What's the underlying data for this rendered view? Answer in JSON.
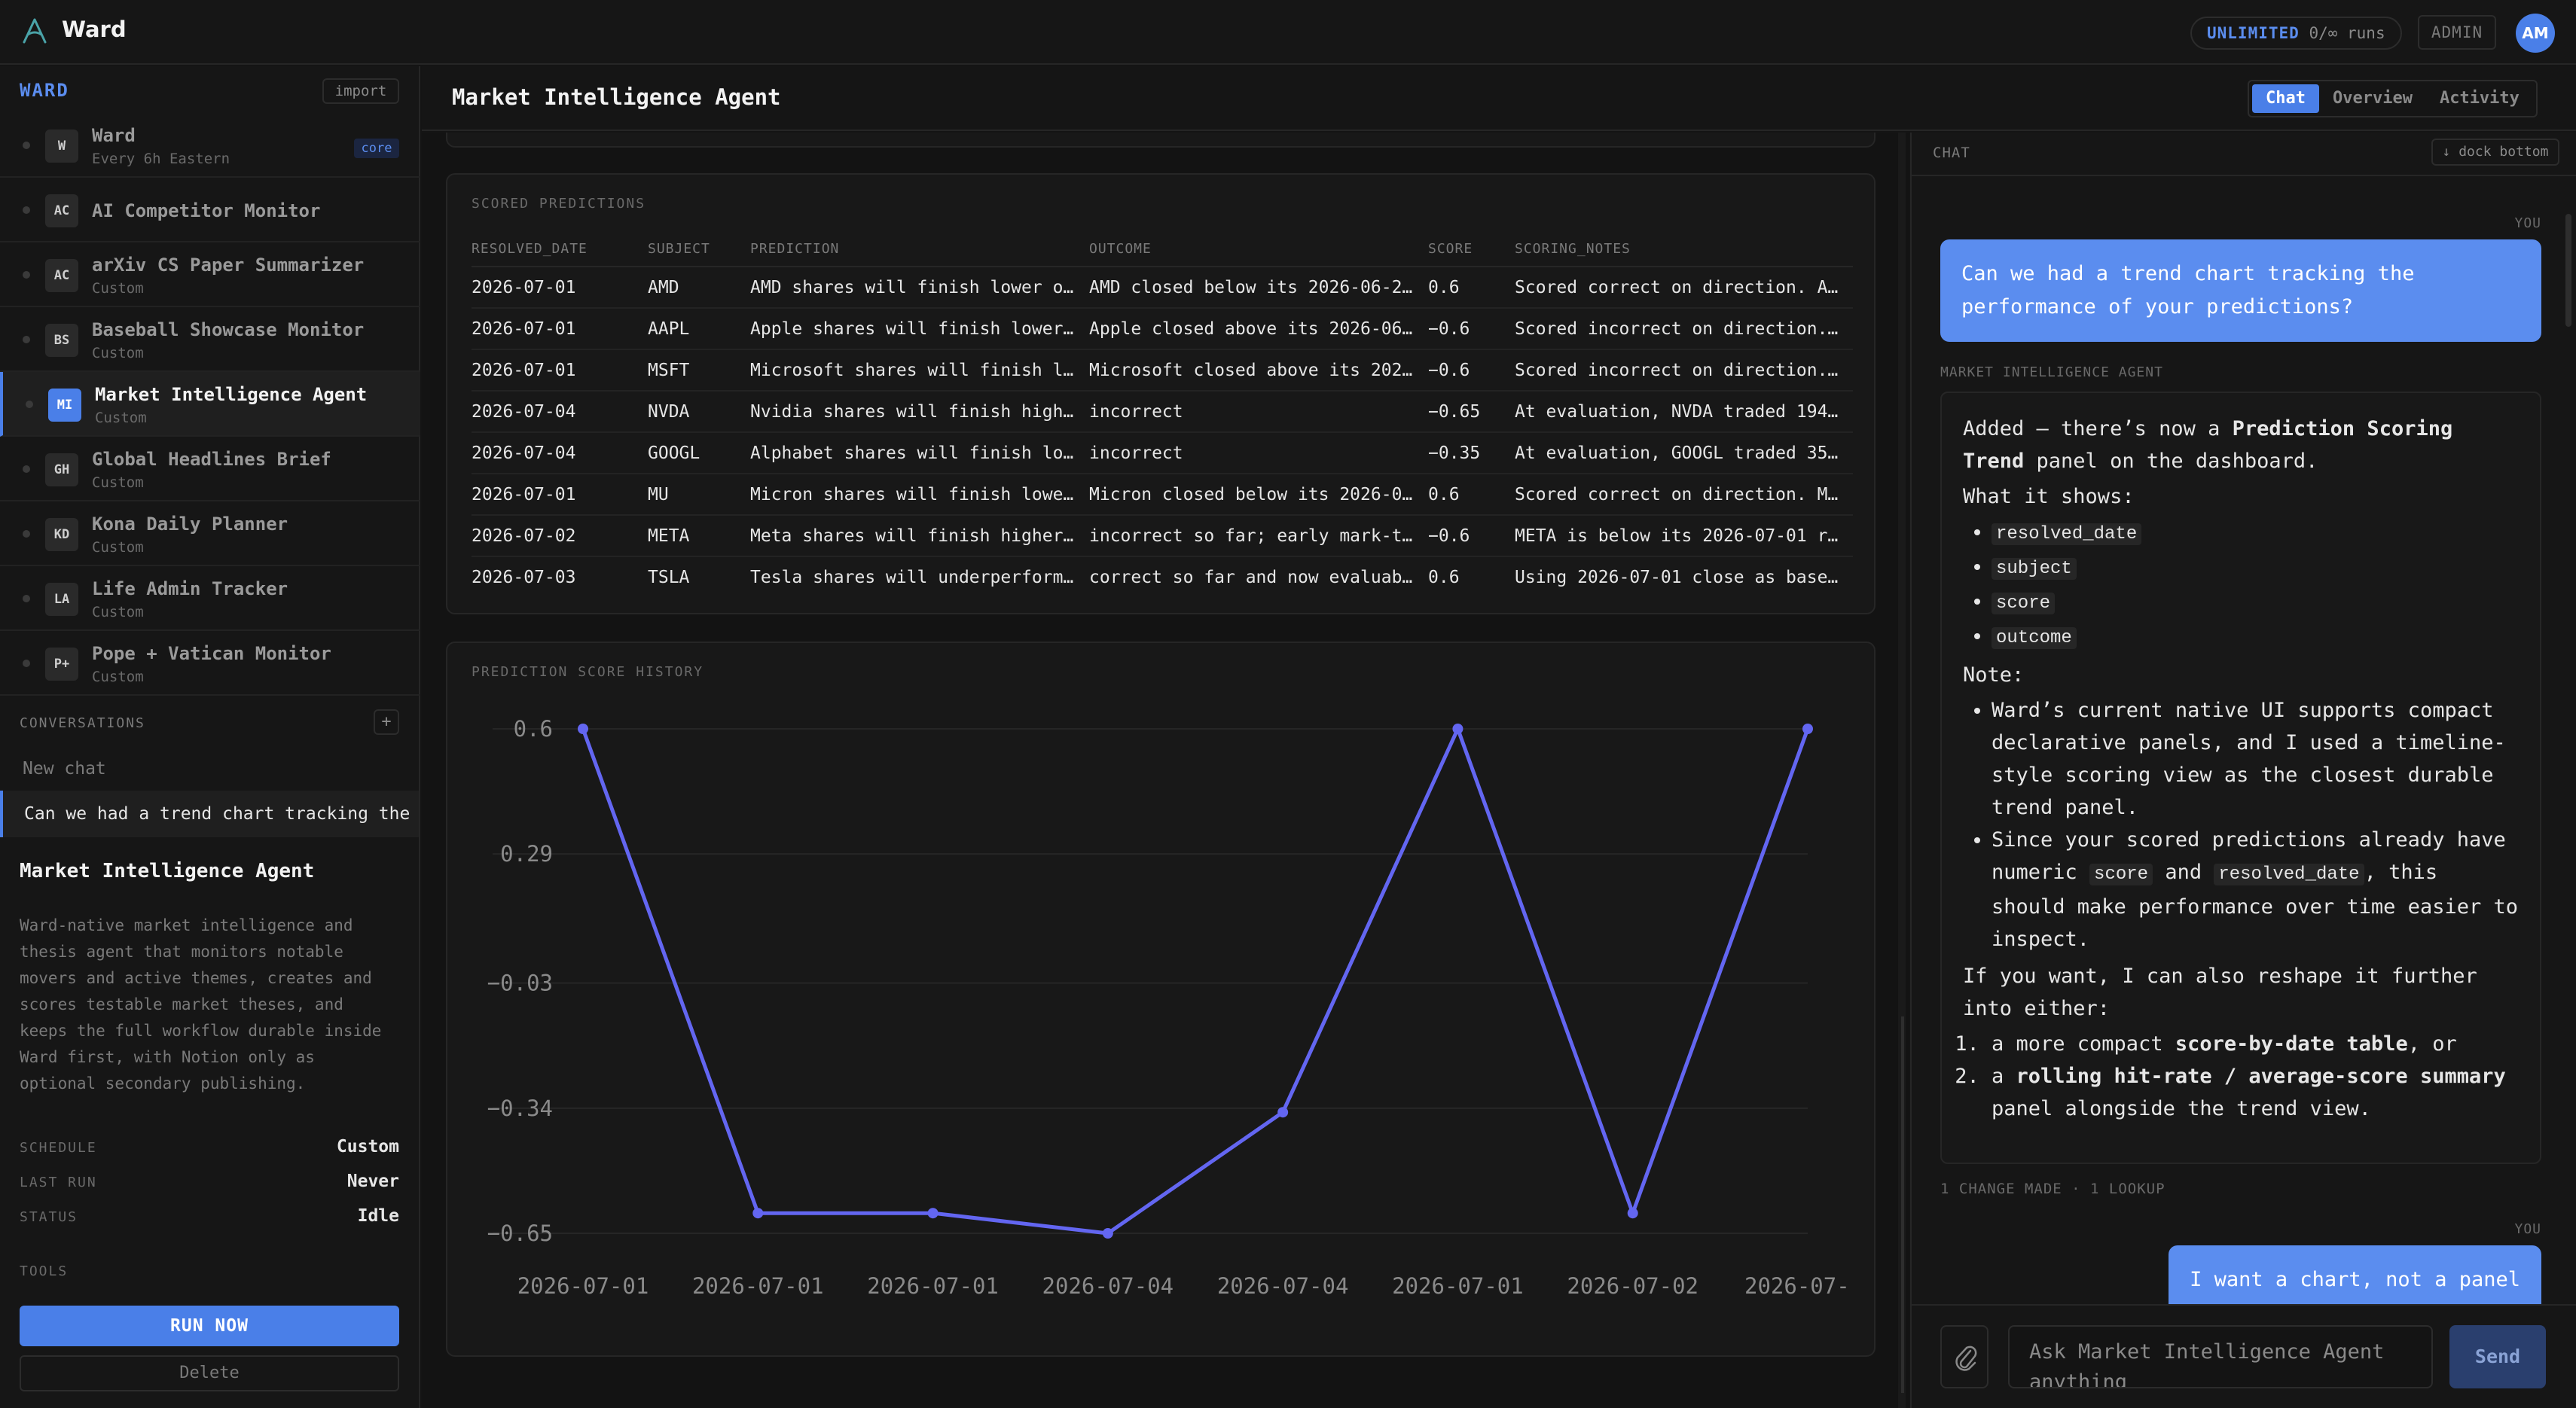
{
  "app": {
    "title": "Ward",
    "runs_label": "UNLIMITED",
    "runs_value": "0/∞ runs",
    "admin_label": "ADMIN",
    "avatar_initials": "AM",
    "accent_color": "#4a7fe8"
  },
  "sidebar": {
    "section_label": "WARD",
    "import_label": "import",
    "agents": [
      {
        "badge": "W",
        "name": "Ward",
        "sub": "Every 6h Eastern",
        "tag": "core"
      },
      {
        "badge": "AC",
        "name": "AI Competitor Monitor",
        "sub": ""
      },
      {
        "badge": "AC",
        "name": "arXiv CS Paper Summarizer",
        "sub": "Custom"
      },
      {
        "badge": "BS",
        "name": "Baseball Showcase Monitor",
        "sub": "Custom"
      },
      {
        "badge": "MI",
        "name": "Market Intelligence Agent",
        "sub": "Custom"
      },
      {
        "badge": "GH",
        "name": "Global Headlines Brief",
        "sub": "Custom"
      },
      {
        "badge": "KD",
        "name": "Kona Daily Planner",
        "sub": "Custom"
      },
      {
        "badge": "LA",
        "name": "Life Admin Tracker",
        "sub": "Custom"
      },
      {
        "badge": "P+",
        "name": "Pope + Vatican Monitor",
        "sub": "Custom"
      }
    ],
    "conversations_label": "CONVERSATIONS",
    "conversations_add": "+",
    "new_chat_label": "New chat",
    "active_conversation": "Can we had a trend chart tracking the performance of your predictions?",
    "agent_title": "Market Intelligence Agent",
    "agent_description": "Ward-native market intelligence and thesis agent that monitors notable movers and active themes, creates and scores testable market theses, and keeps the full workflow durable inside Ward first, with Notion only as optional secondary publishing.",
    "meta": [
      {
        "key": "SCHEDULE",
        "value": "Custom"
      },
      {
        "key": "LAST RUN",
        "value": "Never"
      },
      {
        "key": "STATUS",
        "value": "Idle"
      }
    ],
    "tools_label": "TOOLS",
    "run_now_label": "RUN NOW",
    "delete_label": "Delete"
  },
  "header": {
    "title": "Market Intelligence Agent",
    "tabs": [
      "Chat",
      "Overview",
      "Activity"
    ],
    "active_tab": "Chat"
  },
  "scored_predictions": {
    "label": "SCORED PREDICTIONS",
    "columns": [
      "RESOLVED_DATE",
      "SUBJECT",
      "PREDICTION",
      "OUTCOME",
      "SCORE",
      "SCORING_NOTES"
    ],
    "rows": [
      [
        "2026-07-01",
        "AMD",
        "AMD shares will finish lower ov…",
        "AMD closed below its 2026-06-26…",
        "0.6",
        "Scored correct on direction. AM…"
      ],
      [
        "2026-07-01",
        "AAPL",
        "Apple shares will finish lower …",
        "Apple closed above its 2026-06-…",
        "−0.6",
        "Scored incorrect on direction. …"
      ],
      [
        "2026-07-01",
        "MSFT",
        "Microsoft shares will finish lo…",
        "Microsoft closed above its 2026…",
        "−0.6",
        "Scored incorrect on direction. …"
      ],
      [
        "2026-07-04",
        "NVDA",
        "Nvidia shares will finish highe…",
        "incorrect",
        "−0.65",
        "At evaluation, NVDA traded 194.…"
      ],
      [
        "2026-07-04",
        "GOOGL",
        "Alphabet shares will finish low…",
        "incorrect",
        "−0.35",
        "At evaluation, GOOGL traded 359…"
      ],
      [
        "2026-07-01",
        "MU",
        "Micron shares will finish lower…",
        "Micron closed below its 2026-06…",
        "0.6",
        "Scored correct on direction. MU…"
      ],
      [
        "2026-07-02",
        "META",
        "Meta shares will finish higher …",
        "incorrect so far; early mark-to…",
        "−0.6",
        "META is below its 2026-07-01 re…"
      ],
      [
        "2026-07-03",
        "TSLA",
        "Tesla shares will underperform …",
        "correct so far and now evaluabl…",
        "0.6",
        "Using 2026-07-01 close as basel…"
      ]
    ]
  },
  "chart_data": {
    "type": "line",
    "title": "PREDICTION SCORE HISTORY",
    "x": [
      "2026-07-01",
      "2026-07-01",
      "2026-07-01",
      "2026-07-04",
      "2026-07-04",
      "2026-07-01",
      "2026-07-02",
      "2026-07-"
    ],
    "series": [
      {
        "values": [
          0.6,
          -0.6,
          -0.6,
          -0.65,
          -0.35,
          0.6,
          -0.6,
          0.6
        ]
      }
    ],
    "y_ticks": [
      "0.6",
      "0.29",
      "−0.03",
      "−0.34",
      "−0.65"
    ],
    "y_tick_values": [
      0.6,
      0.29,
      -0.03,
      -0.34,
      -0.65
    ],
    "ylim": [
      -0.65,
      0.6
    ],
    "grid": true,
    "line_color": "#6366f1"
  },
  "chat": {
    "label": "CHAT",
    "dock_label": "↓ dock bottom",
    "you_label": "YOU",
    "agent_label": "MARKET INTELLIGENCE AGENT",
    "user_message_1": "Can we had a trend chart tracking the performance of your predictions?",
    "reply": {
      "intro_1": "Added — there’s now a ",
      "intro_bold": "Prediction Scoring Trend",
      "intro_2": " panel on the dashboard.",
      "what_label": "What it shows:",
      "fields": [
        "resolved_date",
        "subject",
        "score",
        "outcome"
      ],
      "note_label": "Note:",
      "note_1": "Ward’s current native UI supports compact declarative panels, and I used a timeline-style scoring view as the closest durable trend panel.",
      "note_2_a": "Since your scored predictions already have numeric ",
      "note_2_code1": "score",
      "note_2_b": " and ",
      "note_2_code2": "resolved_date",
      "note_2_c": ", this should make performance over time easier to inspect.",
      "offer": "If you want, I can also reshape it further into either:",
      "option_1_a": "a more compact ",
      "option_1_bold": "score-by-date table",
      "option_1_b": ", or",
      "option_2_a": "a ",
      "option_2_bold": "rolling hit-rate / average-score summary",
      "option_2_b": " panel alongside the trend view."
    },
    "change_note": "1 CHANGE MADE · 1 LOOKUP",
    "user_message_2": "I want a chart, not a panel",
    "input_placeholder": "Ask Market Intelligence Agent anything",
    "send_label": "Send"
  }
}
